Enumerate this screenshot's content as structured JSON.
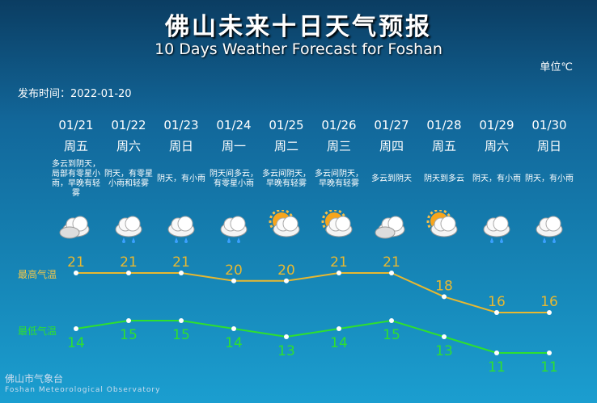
{
  "title": "佛山未来十日天气预报",
  "subtitle": "10 Days Weather Forecast for Foshan",
  "unit": "单位℃",
  "published": "发布时间：2022-01-20",
  "high_label": "最高气温",
  "low_label": "最低气温",
  "footer_cn": "佛山市气象台",
  "footer_en": "Foshan Meteorological Observatory",
  "colors": {
    "high": "#e8b830",
    "low": "#2ee02e"
  },
  "days": [
    {
      "date": "01/21",
      "weekday": "周五",
      "desc": "多云到阴天，局部有零星小雨，早晚有轻雾",
      "icon": "cloudy",
      "high": 21,
      "low": 14
    },
    {
      "date": "01/22",
      "weekday": "周六",
      "desc": "阴天，有零星小雨和轻雾",
      "icon": "rain",
      "high": 21,
      "low": 15
    },
    {
      "date": "01/23",
      "weekday": "周日",
      "desc": "阴天，有小雨",
      "icon": "rain",
      "high": 21,
      "low": 15
    },
    {
      "date": "01/24",
      "weekday": "周一",
      "desc": "阴天间多云，有零星小雨",
      "icon": "rain",
      "high": 20,
      "low": 14
    },
    {
      "date": "01/25",
      "weekday": "周二",
      "desc": "多云间阴天，早晚有轻雾",
      "icon": "sun-cloud",
      "high": 20,
      "low": 13
    },
    {
      "date": "01/26",
      "weekday": "周三",
      "desc": "多云间阴天，早晚有轻雾",
      "icon": "sun-cloud",
      "high": 21,
      "low": 14
    },
    {
      "date": "01/27",
      "weekday": "周四",
      "desc": "多云到阴天",
      "icon": "cloudy",
      "high": 21,
      "low": 15
    },
    {
      "date": "01/28",
      "weekday": "周五",
      "desc": "阴天到多云",
      "icon": "sun-cloud",
      "high": 18,
      "low": 13
    },
    {
      "date": "01/29",
      "weekday": "周六",
      "desc": "阴天，有小雨",
      "icon": "rain",
      "high": 16,
      "low": 11
    },
    {
      "date": "01/30",
      "weekday": "周日",
      "desc": "阴天，有小雨",
      "icon": "rain",
      "high": 16,
      "low": 11
    }
  ]
}
